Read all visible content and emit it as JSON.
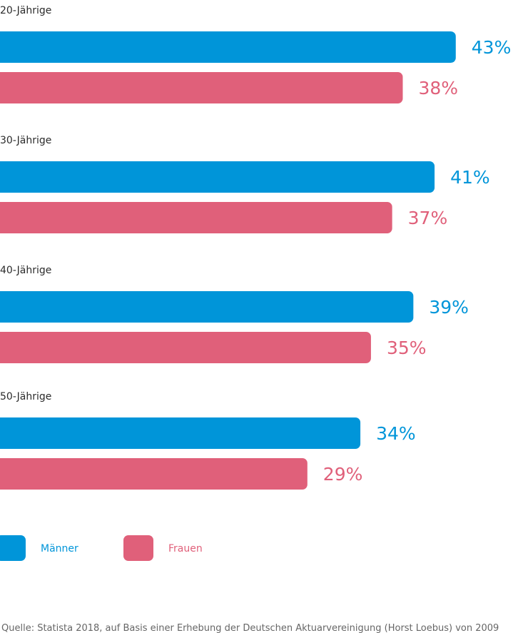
{
  "chart_data": {
    "type": "bar",
    "orientation": "horizontal",
    "categories": [
      "20-Jährige",
      "30-Jährige",
      "40-Jährige",
      "50-Jährige"
    ],
    "series": [
      {
        "name": "Männer",
        "values": [
          43,
          41,
          39,
          34
        ],
        "labels": [
          "43%",
          "41%",
          "39%",
          "34%"
        ],
        "color": "#0095d9"
      },
      {
        "name": "Frauen",
        "values": [
          38,
          37,
          35,
          29
        ],
        "labels": [
          "38%",
          "37%",
          "35%",
          "29%"
        ],
        "color": "#e0607a"
      }
    ],
    "unit": "%",
    "xlim": [
      0,
      48.4
    ],
    "legend_position": "bottom-left",
    "grid": false,
    "source": "Quelle: Statista 2018, auf Basis einer Erhebung der Deutschen Aktuarvereinigung (Horst Loebus) von 2009"
  }
}
